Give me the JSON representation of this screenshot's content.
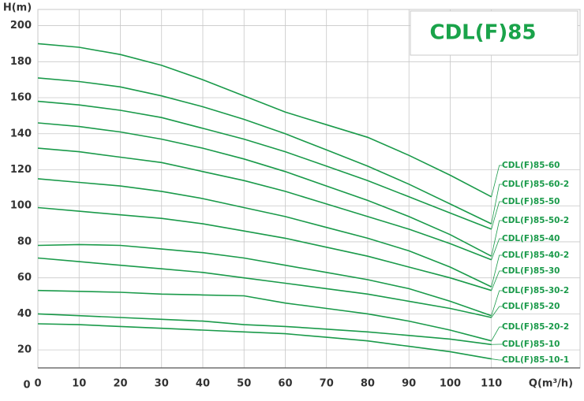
{
  "chart_data": {
    "type": "line",
    "title": "CDL(F)85",
    "y_label": "H(m)",
    "x_label": "Q(m³/h)",
    "origin_label": "0",
    "x": [
      0,
      10,
      20,
      30,
      40,
      50,
      60,
      70,
      80,
      90,
      100,
      110
    ],
    "xlim": [
      0,
      131.5
    ],
    "ylim": [
      10,
      209
    ],
    "xticks": [
      0,
      10,
      20,
      30,
      40,
      50,
      60,
      70,
      80,
      90,
      100,
      110
    ],
    "yticks": [
      20,
      40,
      60,
      80,
      100,
      120,
      140,
      160,
      180,
      200
    ],
    "grid": true,
    "series": [
      {
        "name": "CDL(F)85-60",
        "color": "#1a9a4a",
        "values": [
          190,
          188,
          184,
          178,
          170,
          161,
          152,
          145,
          138,
          128,
          117,
          105
        ]
      },
      {
        "name": "CDL(F)85-60-2",
        "color": "#1a9a4a",
        "values": [
          171,
          169,
          166,
          161,
          155,
          148,
          140,
          131,
          122,
          112,
          101,
          90
        ]
      },
      {
        "name": "CDL(F)85-50",
        "color": "#1a9a4a",
        "values": [
          158,
          156,
          153,
          149,
          143,
          137,
          130,
          122,
          114,
          105,
          96,
          87
        ]
      },
      {
        "name": "CDL(F)85-50-2",
        "color": "#1a9a4a",
        "values": [
          146,
          144,
          141,
          137,
          132,
          126,
          119,
          111,
          103,
          94,
          84,
          72
        ]
      },
      {
        "name": "CDL(F)85-40",
        "color": "#1a9a4a",
        "values": [
          132,
          130,
          127,
          124,
          119,
          114,
          108,
          101,
          94,
          87,
          79,
          70
        ]
      },
      {
        "name": "CDL(F)85-40-2",
        "color": "#1a9a4a",
        "values": [
          115,
          113,
          111,
          108,
          104,
          99,
          94,
          88,
          82,
          75,
          66,
          55
        ]
      },
      {
        "name": "CDL(F)85-30",
        "color": "#1a9a4a",
        "values": [
          99,
          97,
          95,
          93,
          90,
          86,
          82,
          77,
          72,
          66,
          60,
          53
        ]
      },
      {
        "name": "CDL(F)85-30-2",
        "color": "#1a9a4a",
        "values": [
          78,
          78.5,
          78,
          76,
          74,
          71,
          67,
          63,
          59,
          54,
          47,
          39
        ]
      },
      {
        "name": "CDL(F)85-20",
        "color": "#1a9a4a",
        "values": [
          71,
          69,
          67,
          65,
          63,
          60,
          57,
          54,
          51,
          47,
          43,
          38
        ]
      },
      {
        "name": "CDL(F)85-20-2",
        "color": "#1a9a4a",
        "values": [
          53,
          52.5,
          52,
          51,
          50.5,
          50,
          46,
          43,
          40,
          36,
          31,
          25
        ]
      },
      {
        "name": "CDL(F)85-10",
        "color": "#1a9a4a",
        "values": [
          40,
          39,
          38,
          37,
          36,
          34,
          33,
          31.5,
          30,
          28,
          26,
          23
        ]
      },
      {
        "name": "CDL(F)85-10-1",
        "color": "#1a9a4a",
        "values": [
          34.5,
          34,
          33,
          32,
          31,
          30,
          29,
          27,
          25,
          22,
          19,
          15
        ]
      }
    ]
  }
}
